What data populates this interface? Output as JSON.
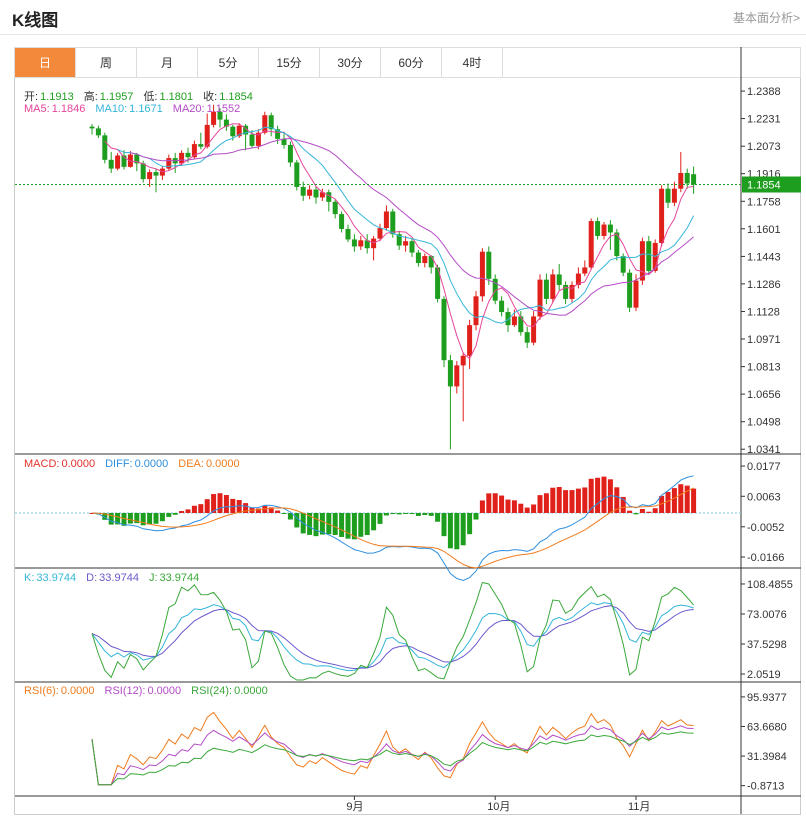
{
  "header": {
    "title": "K线图",
    "link": "基本面分析>"
  },
  "tabs": [
    {
      "label": "日",
      "active": true
    },
    {
      "label": "周",
      "active": false
    },
    {
      "label": "月",
      "active": false
    },
    {
      "label": "5分",
      "active": false
    },
    {
      "label": "15分",
      "active": false
    },
    {
      "label": "30分",
      "active": false
    },
    {
      "label": "60分",
      "active": false
    },
    {
      "label": "4时",
      "active": false
    }
  ],
  "legend": {
    "ohlc": [
      {
        "label": "开:",
        "value": "1.1913"
      },
      {
        "label": "高:",
        "value": "1.1957"
      },
      {
        "label": "低:",
        "value": "1.1801"
      },
      {
        "label": "收:",
        "value": "1.1854"
      }
    ],
    "ma": [
      {
        "label": "MA5:",
        "value": "1.1846",
        "color": "#e6459a"
      },
      {
        "label": "MA10:",
        "value": "1.1671",
        "color": "#35b6d9"
      },
      {
        "label": "MA20:",
        "value": "1.1552",
        "color": "#b44cc6"
      }
    ],
    "macd": [
      {
        "label": "MACD:",
        "value": "0.0000",
        "color": "#e0322b"
      },
      {
        "label": "DIFF:",
        "value": "0.0000",
        "color": "#2e8fe0"
      },
      {
        "label": "DEA:",
        "value": "0.0000",
        "color": "#f07c1e"
      }
    ],
    "kdj": [
      {
        "label": "K:",
        "value": "33.9744",
        "color": "#35b6d9"
      },
      {
        "label": "D:",
        "value": "33.9744",
        "color": "#6a5acd"
      },
      {
        "label": "J:",
        "value": "33.9744",
        "color": "#3aa83a"
      }
    ],
    "rsi": [
      {
        "label": "RSI(6):",
        "value": "0.0000",
        "color": "#f07c1e"
      },
      {
        "label": "RSI(12):",
        "value": "0.0000",
        "color": "#b44cc6"
      },
      {
        "label": "RSI(24):",
        "value": "0.0000",
        "color": "#3aa83a"
      }
    ]
  },
  "colors": {
    "up": "#e0201b",
    "down": "#1e9e1e",
    "last_price_bg": "#1e9e1e"
  },
  "chart_data": {
    "type": "candlestick",
    "last_price": "1.1854",
    "price_axis": {
      "ticks": [
        "1.2388",
        "1.2231",
        "1.2073",
        "1.1916",
        "1.1758",
        "1.1601",
        "1.1443",
        "1.1286",
        "1.1128",
        "1.0971",
        "1.0813",
        "1.0656",
        "1.0498",
        "1.0341"
      ],
      "range": [
        1.0325,
        1.244
      ]
    },
    "x_labels": [
      {
        "label": "9月",
        "index": 41
      },
      {
        "label": "10月",
        "index": 63
      },
      {
        "label": "11月",
        "index": 85
      }
    ],
    "candles": [
      [
        1.2185,
        1.2175,
        1.22,
        1.214
      ],
      [
        1.2175,
        1.2135,
        1.219,
        1.212
      ],
      [
        1.2135,
        1.1995,
        1.215,
        1.1975
      ],
      [
        1.1995,
        1.1945,
        1.204,
        1.192
      ],
      [
        1.1945,
        1.202,
        1.2035,
        1.1935
      ],
      [
        1.202,
        1.1955,
        1.205,
        1.194
      ],
      [
        1.1955,
        1.2025,
        1.2045,
        1.195
      ],
      [
        1.2025,
        1.1975,
        1.2035,
        1.193
      ],
      [
        1.1975,
        1.1885,
        1.199,
        1.1865
      ],
      [
        1.1885,
        1.1925,
        1.194,
        1.184
      ],
      [
        1.1925,
        1.1905,
        1.1945,
        1.181
      ],
      [
        1.1905,
        1.1945,
        1.196,
        1.188
      ],
      [
        1.1945,
        1.2005,
        1.2025,
        1.1935
      ],
      [
        1.2005,
        1.1975,
        1.2035,
        1.192
      ],
      [
        1.1975,
        1.2035,
        1.205,
        1.196
      ],
      [
        1.2035,
        1.201,
        1.2065,
        1.198
      ],
      [
        1.201,
        1.2085,
        1.2105,
        1.2
      ],
      [
        1.2085,
        1.207,
        1.215,
        1.2055
      ],
      [
        1.207,
        1.2195,
        1.226,
        1.206
      ],
      [
        1.2195,
        1.227,
        1.231,
        1.218
      ],
      [
        1.227,
        1.2225,
        1.229,
        1.218
      ],
      [
        1.2225,
        1.2185,
        1.2255,
        1.216
      ],
      [
        1.2185,
        1.213,
        1.2195,
        1.2105
      ],
      [
        1.213,
        1.219,
        1.2205,
        1.212
      ],
      [
        1.219,
        1.214,
        1.22,
        1.205
      ],
      [
        1.214,
        1.2075,
        1.2165,
        1.206
      ],
      [
        1.2075,
        1.215,
        1.217,
        1.2055
      ],
      [
        1.215,
        1.225,
        1.227,
        1.214
      ],
      [
        1.225,
        1.217,
        1.2265,
        1.213
      ],
      [
        1.217,
        1.2115,
        1.219,
        1.2085
      ],
      [
        1.2115,
        1.208,
        1.2145,
        1.206
      ],
      [
        1.208,
        1.198,
        1.21,
        1.1955
      ],
      [
        1.198,
        1.184,
        1.1995,
        1.182
      ],
      [
        1.184,
        1.179,
        1.187,
        1.176
      ],
      [
        1.179,
        1.1825,
        1.185,
        1.177
      ],
      [
        1.1825,
        1.178,
        1.1845,
        1.1745
      ],
      [
        1.178,
        1.181,
        1.183,
        1.176
      ],
      [
        1.181,
        1.1755,
        1.1825,
        1.17
      ],
      [
        1.1755,
        1.1685,
        1.177,
        1.166
      ],
      [
        1.1685,
        1.16,
        1.17,
        1.158
      ],
      [
        1.16,
        1.154,
        1.1625,
        1.1525
      ],
      [
        1.154,
        1.15,
        1.157,
        1.147
      ],
      [
        1.15,
        1.1535,
        1.156,
        1.148
      ],
      [
        1.1535,
        1.149,
        1.157,
        1.146
      ],
      [
        1.149,
        1.1545,
        1.156,
        1.142
      ],
      [
        1.1545,
        1.1605,
        1.163,
        1.153
      ],
      [
        1.1605,
        1.17,
        1.1735,
        1.159
      ],
      [
        1.17,
        1.157,
        1.1715,
        1.155
      ],
      [
        1.157,
        1.1505,
        1.159,
        1.148
      ],
      [
        1.1505,
        1.153,
        1.156,
        1.147
      ],
      [
        1.153,
        1.1465,
        1.155,
        1.144
      ],
      [
        1.1465,
        1.1405,
        1.148,
        1.1385
      ],
      [
        1.1405,
        1.1445,
        1.146,
        1.138
      ],
      [
        1.1445,
        1.138,
        1.145,
        1.1345
      ],
      [
        1.138,
        1.12,
        1.1395,
        1.118
      ],
      [
        1.12,
        1.085,
        1.1215,
        1.081
      ],
      [
        1.085,
        1.07,
        1.088,
        1.034
      ],
      [
        1.07,
        1.082,
        1.0845,
        1.066
      ],
      [
        1.082,
        1.0875,
        1.0895,
        1.05
      ],
      [
        1.0875,
        1.105,
        1.108,
        1.08
      ],
      [
        1.105,
        1.1215,
        1.1245,
        1.102
      ],
      [
        1.1215,
        1.147,
        1.149,
        1.1185
      ],
      [
        1.147,
        1.1315,
        1.15,
        1.128
      ],
      [
        1.1315,
        1.119,
        1.134,
        1.117
      ],
      [
        1.119,
        1.1125,
        1.1215,
        1.11
      ],
      [
        1.1125,
        1.105,
        1.115,
        1.101
      ],
      [
        1.105,
        1.11,
        1.114,
        1.104
      ],
      [
        1.11,
        1.101,
        1.113,
        1.099
      ],
      [
        1.101,
        1.095,
        1.104,
        1.092
      ],
      [
        1.095,
        1.11,
        1.113,
        1.0935
      ],
      [
        1.11,
        1.131,
        1.134,
        1.108
      ],
      [
        1.131,
        1.12,
        1.1345,
        1.117
      ],
      [
        1.12,
        1.134,
        1.137,
        1.118
      ],
      [
        1.134,
        1.128,
        1.14,
        1.125
      ],
      [
        1.128,
        1.12,
        1.13,
        1.117
      ],
      [
        1.12,
        1.128,
        1.13,
        1.118
      ],
      [
        1.128,
        1.1345,
        1.138,
        1.126
      ],
      [
        1.1345,
        1.138,
        1.142,
        1.133
      ],
      [
        1.138,
        1.1645,
        1.166,
        1.137
      ],
      [
        1.1645,
        1.156,
        1.1665,
        1.154
      ],
      [
        1.156,
        1.1625,
        1.164,
        1.154
      ],
      [
        1.1625,
        1.158,
        1.165,
        1.148
      ],
      [
        1.158,
        1.1445,
        1.16,
        1.142
      ],
      [
        1.1445,
        1.135,
        1.146,
        1.133
      ],
      [
        1.135,
        1.115,
        1.137,
        1.1125
      ],
      [
        1.115,
        1.1305,
        1.134,
        1.113
      ],
      [
        1.1305,
        1.153,
        1.155,
        1.128
      ],
      [
        1.153,
        1.136,
        1.156,
        1.134
      ],
      [
        1.136,
        1.152,
        1.154,
        1.135
      ],
      [
        1.152,
        1.183,
        1.185,
        1.15
      ],
      [
        1.183,
        1.175,
        1.186,
        1.172
      ],
      [
        1.175,
        1.183,
        1.187,
        1.173
      ],
      [
        1.183,
        1.192,
        1.204,
        1.181
      ],
      [
        1.192,
        1.186,
        1.1945,
        1.183
      ],
      [
        1.1913,
        1.1854,
        1.1957,
        1.1801
      ]
    ],
    "macd_axis": {
      "ticks": [
        "0.0177",
        "0.0063",
        "-0.0052",
        "-0.0166"
      ],
      "range": [
        -0.02,
        0.0215
      ]
    },
    "kdj_axis": {
      "ticks": [
        "108.4855",
        "73.0076",
        "37.5298",
        "2.0519"
      ],
      "range": [
        -5,
        125
      ]
    },
    "rsi_axis": {
      "ticks": [
        "95.9377",
        "63.6680",
        "31.3984",
        "-0.8713"
      ],
      "range": [
        -10,
        110
      ]
    }
  }
}
